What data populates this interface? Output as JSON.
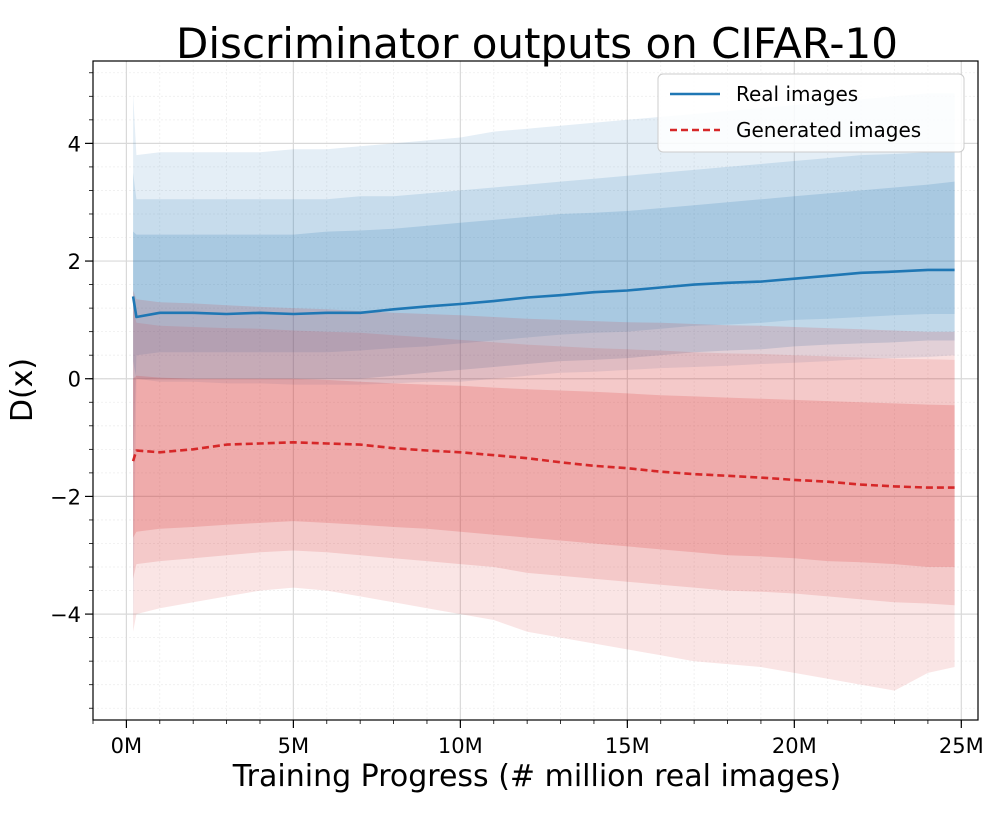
{
  "chart_data": {
    "type": "line",
    "title": "Discriminator outputs on CIFAR-10",
    "xlabel": "Training Progress (# million real images)",
    "ylabel": "D(x)",
    "xlim": [
      -1,
      25.5
    ],
    "ylim": [
      -5.8,
      5.4
    ],
    "x_ticks": [
      0,
      5,
      10,
      15,
      20,
      25
    ],
    "x_tick_labels": [
      "0M",
      "5M",
      "10M",
      "15M",
      "20M",
      "25M"
    ],
    "y_ticks": [
      -4,
      -2,
      0,
      2,
      4
    ],
    "y_tick_labels": [
      "−4",
      "−2",
      "0",
      "2",
      "4"
    ],
    "grid": true,
    "legend_position": "upper right",
    "colors": {
      "real": "#1f77b4",
      "generated": "#d62728"
    },
    "x": [
      0.2,
      0.3,
      1,
      2,
      3,
      4,
      5,
      6,
      7,
      8,
      9,
      10,
      11,
      12,
      13,
      14,
      15,
      16,
      17,
      18,
      19,
      20,
      21,
      22,
      23,
      24,
      24.8
    ],
    "series": [
      {
        "name": "Real images",
        "style": "solid",
        "values": [
          1.4,
          1.05,
          1.12,
          1.12,
          1.1,
          1.12,
          1.1,
          1.12,
          1.12,
          1.18,
          1.23,
          1.27,
          1.32,
          1.38,
          1.42,
          1.47,
          1.5,
          1.55,
          1.6,
          1.63,
          1.65,
          1.7,
          1.75,
          1.8,
          1.82,
          1.85,
          1.85
        ],
        "bands": [
          {
            "lower": [
              -4.2,
              0.0,
              -0.05,
              -0.05,
              -0.08,
              -0.08,
              -0.1,
              -0.1,
              -0.1,
              -0.08,
              -0.05,
              -0.05,
              0.0,
              0.05,
              0.1,
              0.12,
              0.15,
              0.18,
              0.2,
              0.22,
              0.25,
              0.27,
              0.3,
              0.33,
              0.35,
              0.37,
              0.4
            ],
            "upper": [
              4.85,
              3.8,
              3.85,
              3.85,
              3.85,
              3.85,
              3.9,
              3.9,
              3.95,
              4.0,
              4.05,
              4.1,
              4.2,
              4.25,
              4.3,
              4.35,
              4.4,
              4.45,
              4.5,
              4.55,
              4.6,
              4.65,
              4.7,
              4.75,
              4.8,
              4.85,
              4.85
            ]
          },
          {
            "lower": [
              -1.5,
              0.4,
              0.45,
              0.45,
              0.45,
              0.45,
              0.45,
              0.45,
              0.48,
              0.52,
              0.55,
              0.6,
              0.65,
              0.7,
              0.75,
              0.78,
              0.8,
              0.85,
              0.9,
              0.92,
              0.95,
              1.0,
              1.02,
              1.05,
              1.08,
              1.1,
              1.1
            ],
            "upper": [
              3.5,
              3.05,
              3.05,
              3.05,
              3.05,
              3.05,
              3.05,
              3.05,
              3.1,
              3.1,
              3.15,
              3.2,
              3.25,
              3.3,
              3.35,
              3.4,
              3.45,
              3.5,
              3.55,
              3.6,
              3.65,
              3.7,
              3.75,
              3.8,
              3.82,
              3.85,
              3.85
            ]
          },
          {
            "lower": [
              0.3,
              0.0,
              0.0,
              0.0,
              0.0,
              0.0,
              0.0,
              0.0,
              0.0,
              0.05,
              0.1,
              0.15,
              0.2,
              0.25,
              0.3,
              0.32,
              0.35,
              0.4,
              0.45,
              0.48,
              0.5,
              0.55,
              0.58,
              0.6,
              0.62,
              0.65,
              0.65
            ],
            "upper": [
              2.5,
              2.45,
              2.45,
              2.45,
              2.45,
              2.45,
              2.45,
              2.5,
              2.52,
              2.55,
              2.6,
              2.65,
              2.7,
              2.75,
              2.8,
              2.82,
              2.85,
              2.9,
              2.95,
              3.0,
              3.05,
              3.1,
              3.15,
              3.2,
              3.25,
              3.3,
              3.35
            ]
          }
        ]
      },
      {
        "name": "Generated images",
        "style": "dashed",
        "values": [
          -1.4,
          -1.22,
          -1.25,
          -1.2,
          -1.12,
          -1.1,
          -1.08,
          -1.1,
          -1.12,
          -1.18,
          -1.22,
          -1.25,
          -1.3,
          -1.35,
          -1.42,
          -1.48,
          -1.52,
          -1.58,
          -1.62,
          -1.65,
          -1.68,
          -1.72,
          -1.75,
          -1.8,
          -1.83,
          -1.85,
          -1.85
        ],
        "bands": [
          {
            "lower": [
              -4.3,
              -4.0,
              -3.9,
              -3.8,
              -3.7,
              -3.6,
              -3.55,
              -3.6,
              -3.7,
              -3.8,
              -3.9,
              -4.0,
              -4.1,
              -4.3,
              -4.4,
              -4.5,
              -4.6,
              -4.7,
              -4.8,
              -4.85,
              -4.9,
              -5.0,
              -5.1,
              -5.2,
              -5.3,
              -5.0,
              -4.9
            ],
            "upper": [
              1.2,
              0.95,
              0.9,
              0.88,
              0.86,
              0.85,
              0.82,
              0.8,
              0.78,
              0.74,
              0.7,
              0.66,
              0.62,
              0.58,
              0.55,
              0.52,
              0.5,
              0.48,
              0.45,
              0.43,
              0.42,
              0.4,
              0.38,
              0.36,
              0.34,
              0.33,
              0.32
            ]
          },
          {
            "lower": [
              -3.4,
              -3.15,
              -3.1,
              -3.05,
              -3.0,
              -2.95,
              -2.92,
              -2.95,
              -3.0,
              -3.05,
              -3.1,
              -3.15,
              -3.2,
              -3.3,
              -3.35,
              -3.4,
              -3.45,
              -3.5,
              -3.55,
              -3.6,
              -3.62,
              -3.65,
              -3.7,
              -3.75,
              -3.8,
              -3.82,
              -3.85
            ],
            "upper": [
              1.5,
              1.35,
              1.3,
              1.28,
              1.25,
              1.22,
              1.2,
              1.18,
              1.15,
              1.12,
              1.1,
              1.08,
              1.05,
              1.02,
              1.0,
              0.98,
              0.96,
              0.95,
              0.93,
              0.91,
              0.9,
              0.88,
              0.86,
              0.84,
              0.82,
              0.8,
              0.8
            ]
          },
          {
            "lower": [
              -2.7,
              -2.6,
              -2.55,
              -2.52,
              -2.48,
              -2.45,
              -2.42,
              -2.45,
              -2.48,
              -2.52,
              -2.55,
              -2.6,
              -2.65,
              -2.7,
              -2.75,
              -2.8,
              -2.85,
              -2.9,
              -2.95,
              -3.0,
              -3.02,
              -3.05,
              -3.1,
              -3.12,
              -3.15,
              -3.2,
              -3.2
            ],
            "upper": [
              0.0,
              0.05,
              0.02,
              0.0,
              0.0,
              0.0,
              0.0,
              -0.02,
              -0.05,
              -0.08,
              -0.1,
              -0.12,
              -0.15,
              -0.18,
              -0.2,
              -0.22,
              -0.25,
              -0.28,
              -0.3,
              -0.32,
              -0.34,
              -0.36,
              -0.38,
              -0.4,
              -0.42,
              -0.44,
              -0.45
            ]
          }
        ]
      }
    ]
  }
}
